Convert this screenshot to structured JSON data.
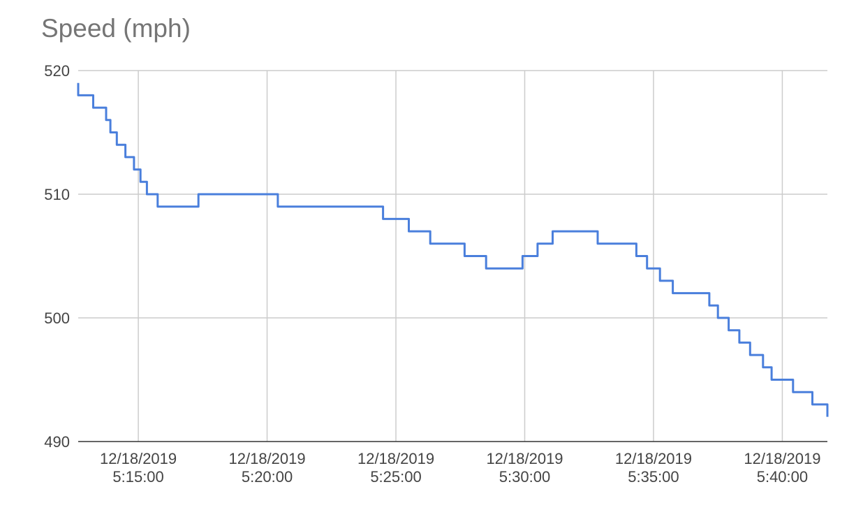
{
  "chart_data": {
    "type": "line",
    "title": "Speed (mph)",
    "xlabel": "",
    "ylabel": "",
    "line_style": "step",
    "grid": true,
    "legend": "none",
    "color": "#4a7fdc",
    "ylim": [
      490,
      520
    ],
    "yticks": [
      "490",
      "500",
      "510",
      "520"
    ],
    "xlim": [
      "12/18/2019 5:12:40",
      "12/18/2019 5:41:45"
    ],
    "xticks": [
      {
        "date": "12/18/2019",
        "time": "5:15:00"
      },
      {
        "date": "12/18/2019",
        "time": "5:20:00"
      },
      {
        "date": "12/18/2019",
        "time": "5:25:00"
      },
      {
        "date": "12/18/2019",
        "time": "5:30:00"
      },
      {
        "date": "12/18/2019",
        "time": "5:35:00"
      },
      {
        "date": "12/18/2019",
        "time": "5:40:00"
      }
    ],
    "series": [
      {
        "x": [
          "5:12:40",
          "5:13:15",
          "5:13:45",
          "5:13:55",
          "5:14:10",
          "5:14:30",
          "5:14:50",
          "5:15:05",
          "5:15:20",
          "5:15:45",
          "5:16:00",
          "5:17:20",
          "5:20:25",
          "5:24:30",
          "5:25:30",
          "5:26:20",
          "5:27:40",
          "5:28:30",
          "5:29:55",
          "5:30:30",
          "5:31:05",
          "5:32:50",
          "5:33:00",
          "5:34:20",
          "5:34:45",
          "5:35:15",
          "5:35:45",
          "5:37:10",
          "5:37:30",
          "5:37:55",
          "5:38:20",
          "5:38:45",
          "5:39:15",
          "5:39:35",
          "5:40:25",
          "5:41:10",
          "5:41:45"
        ],
        "y": [
          518,
          517,
          516,
          515,
          514,
          513,
          512,
          511,
          510,
          509,
          509,
          510,
          509,
          508,
          507,
          506,
          505,
          504,
          505,
          506,
          507,
          506,
          506,
          505,
          504,
          503,
          502,
          501,
          500,
          499,
          498,
          497,
          496,
          495,
          494,
          493,
          492
        ]
      }
    ]
  }
}
